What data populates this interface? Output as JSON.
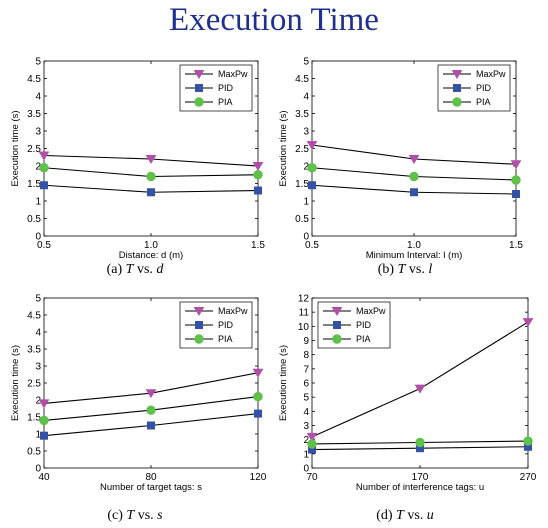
{
  "title": "Execution Time",
  "colors": {
    "MaxPw": "#b04fa8",
    "PID": "#3352a6",
    "PIA": "#5fc04a"
  },
  "chart_data": [
    {
      "type": "line",
      "caption": {
        "label": "(a)",
        "T": "T",
        "vs": "vs.",
        "var": "d"
      },
      "xlabel": "Distance: d (m)",
      "ylabel": "Execution time (s)",
      "x": [
        0.5,
        1.0,
        1.5
      ],
      "xticks": [
        "0.5",
        "1.0",
        "1.5"
      ],
      "ylim": [
        0,
        5
      ],
      "yticks": [
        "0",
        "0.5",
        "1",
        "1.5",
        "2",
        "2.5",
        "3",
        "3.5",
        "4",
        "4.5",
        "5"
      ],
      "legend": "top-right",
      "series": [
        {
          "name": "MaxPw",
          "values": [
            2.3,
            2.2,
            2.0
          ]
        },
        {
          "name": "PID",
          "values": [
            1.45,
            1.25,
            1.3
          ]
        },
        {
          "name": "PIA",
          "values": [
            1.95,
            1.7,
            1.75
          ]
        }
      ]
    },
    {
      "type": "line",
      "caption": {
        "label": "(b)",
        "T": "T",
        "vs": "vs.",
        "var": "l"
      },
      "xlabel": "Minimum Interval: l (m)",
      "ylabel": "Execution time (s)",
      "x": [
        0.5,
        1.0,
        1.5
      ],
      "xticks": [
        "0.5",
        "1.0",
        "1.5"
      ],
      "ylim": [
        0,
        5
      ],
      "yticks": [
        "0",
        "0.5",
        "1",
        "1.5",
        "2",
        "2.5",
        "3",
        "3.5",
        "4",
        "4.5",
        "5"
      ],
      "legend": "top-right",
      "series": [
        {
          "name": "MaxPw",
          "values": [
            2.6,
            2.2,
            2.05
          ]
        },
        {
          "name": "PID",
          "values": [
            1.45,
            1.25,
            1.2
          ]
        },
        {
          "name": "PIA",
          "values": [
            1.95,
            1.7,
            1.6
          ]
        }
      ]
    },
    {
      "type": "line",
      "caption": {
        "label": "(c)",
        "T": "T",
        "vs": "vs.",
        "var": "s"
      },
      "xlabel": "Number of target tags: s",
      "ylabel": "Execution time (s)",
      "x": [
        40,
        80,
        120
      ],
      "xticks": [
        "40",
        "80",
        "120"
      ],
      "ylim": [
        0,
        5
      ],
      "yticks": [
        "0",
        "0.5",
        "1",
        "1.5",
        "2",
        "2.5",
        "3",
        "3.5",
        "4",
        "4.5",
        "5"
      ],
      "legend": "top-right",
      "series": [
        {
          "name": "MaxPw",
          "values": [
            1.9,
            2.2,
            2.8
          ]
        },
        {
          "name": "PID",
          "values": [
            0.95,
            1.25,
            1.6
          ]
        },
        {
          "name": "PIA",
          "values": [
            1.4,
            1.7,
            2.1
          ]
        }
      ]
    },
    {
      "type": "line",
      "caption": {
        "label": "(d)",
        "T": "T",
        "vs": "vs.",
        "var": "u"
      },
      "xlabel": "Number of interference tags: u",
      "ylabel": "Execution time (s)",
      "x": [
        70,
        170,
        270
      ],
      "xticks": [
        "70",
        "170",
        "270"
      ],
      "ylim": [
        0,
        12
      ],
      "yticks": [
        "0",
        "1",
        "2",
        "3",
        "4",
        "5",
        "6",
        "7",
        "8",
        "9",
        "10",
        "11",
        "12"
      ],
      "legend": "top-left",
      "series": [
        {
          "name": "MaxPw",
          "values": [
            2.2,
            5.6,
            10.3
          ]
        },
        {
          "name": "PID",
          "values": [
            1.3,
            1.4,
            1.5
          ]
        },
        {
          "name": "PIA",
          "values": [
            1.7,
            1.8,
            1.9
          ]
        }
      ]
    }
  ]
}
